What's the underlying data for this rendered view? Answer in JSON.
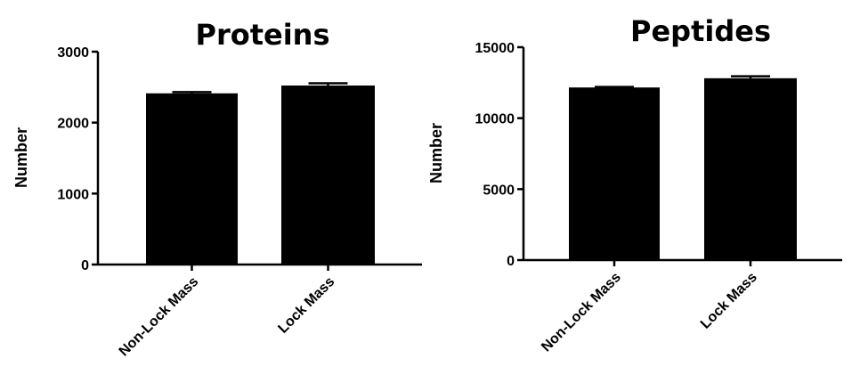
{
  "chart_data": [
    {
      "type": "bar",
      "title": "Proteins",
      "xlabel": "",
      "ylabel": "Number",
      "categories": [
        "Non-Lock Mass",
        "Lock Mass"
      ],
      "values": [
        2400,
        2510
      ],
      "errors": [
        30,
        45
      ],
      "ylim": [
        0,
        3000
      ],
      "yticks": [
        0,
        1000,
        2000,
        3000
      ],
      "ytick_labels": [
        "0",
        "1000",
        "2000",
        "3000"
      ],
      "grid": false,
      "bar_color": "#000000"
    },
    {
      "type": "bar",
      "title": "Peptides",
      "xlabel": "",
      "ylabel": "Number",
      "categories": [
        "Non-Lock Mass",
        "Lock Mass"
      ],
      "values": [
        12100,
        12750
      ],
      "errors": [
        100,
        200
      ],
      "ylim": [
        0,
        15000
      ],
      "yticks": [
        0,
        5000,
        10000,
        15000
      ],
      "ytick_labels": [
        "0",
        "5000",
        "10000",
        "15000"
      ],
      "grid": false,
      "bar_color": "#000000"
    }
  ]
}
